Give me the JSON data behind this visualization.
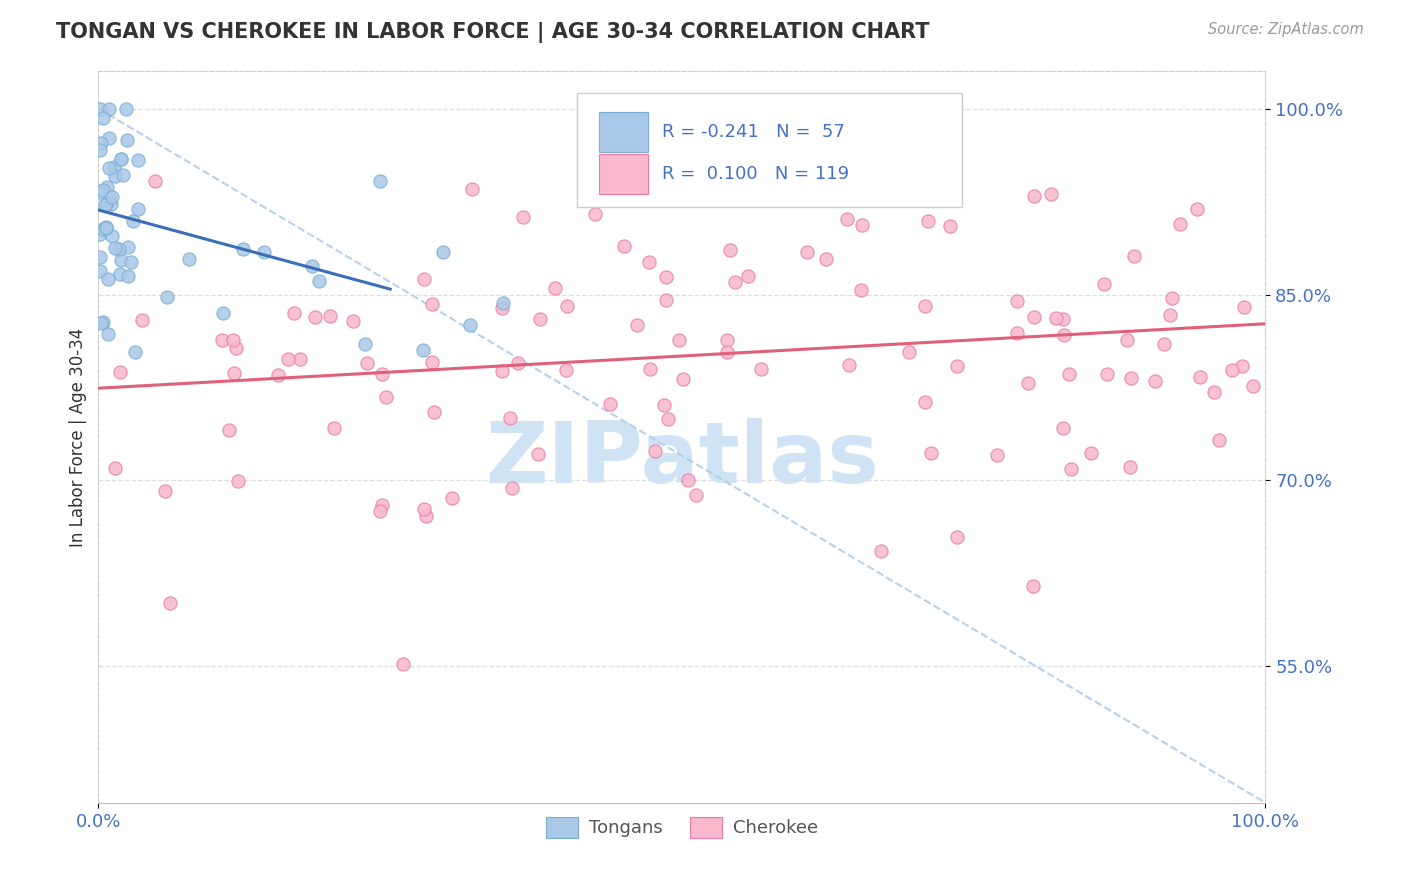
{
  "title": "TONGAN VS CHEROKEE IN LABOR FORCE | AGE 30-34 CORRELATION CHART",
  "source_text": "Source: ZipAtlas.com",
  "ylabel": "In Labor Force | Age 30-34",
  "xlim": [
    0.0,
    1.0
  ],
  "ylim": [
    0.44,
    1.03
  ],
  "ytick_positions": [
    0.55,
    0.7,
    0.85,
    1.0
  ],
  "ytick_labels": [
    "55.0%",
    "70.0%",
    "85.0%",
    "100.0%"
  ],
  "legend_r_tongan": "-0.241",
  "legend_n_tongan": "57",
  "legend_r_cherokee": "0.100",
  "legend_n_cherokee": "119",
  "tongan_fill": "#aac8e8",
  "tongan_edge": "#7aadd4",
  "cherokee_fill": "#f9b8cc",
  "cherokee_edge": "#e87aaa",
  "trend_tongan_color": "#3b6fb5",
  "trend_cherokee_color": "#e0607a",
  "diag_line_color": "#b0cce8",
  "watermark_color": "#cfe3f5",
  "title_color": "#333333",
  "source_color": "#999999",
  "ytick_color": "#4472c4",
  "xtick_color": "#4472c4",
  "ylabel_color": "#333333",
  "legend_border_color": "#cccccc",
  "legend_bg_color": "#ffffff",
  "grid_color": "#dddddd"
}
